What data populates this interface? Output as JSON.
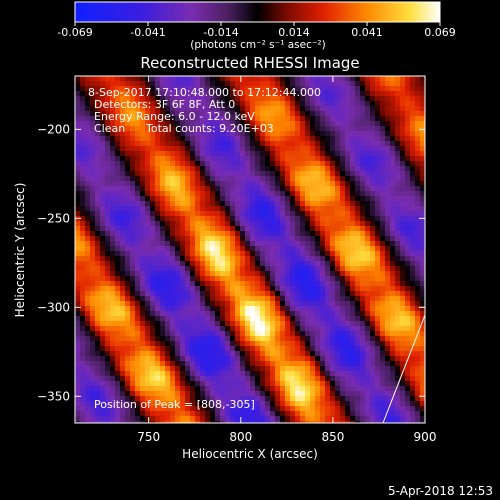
{
  "colorbar": {
    "tick_labels": [
      "-0.069",
      "-0.041",
      "-0.014",
      "0.014",
      "0.041",
      "0.069"
    ],
    "units": "(photons cm⁻² s⁻¹ asec⁻²)",
    "range": [
      -0.069,
      0.069
    ]
  },
  "chart_data": {
    "type": "heatmap",
    "title": "Reconstructed RHESSI Image",
    "xlabel": "Heliocentric X (arcsec)",
    "ylabel": "Heliocentric Y (arcsec)",
    "xlim": [
      710,
      900
    ],
    "ylim": [
      -365,
      -170
    ],
    "x_ticks": [
      750,
      800,
      850,
      900
    ],
    "y_ticks": [
      -200,
      -250,
      -300,
      -350
    ],
    "x_tick_labels": [
      "750",
      "800",
      "850",
      "900"
    ],
    "y_tick_labels": [
      "−200",
      "−250",
      "−300",
      "−350"
    ],
    "colormap": "thermal (blue – purple – black – red – orange – yellow – white)",
    "value_range": [
      -0.069,
      0.069
    ],
    "pattern": "diagonal fringe bands of alternating positive/negative flux",
    "peak_position": [
      808,
      -305
    ],
    "annotations": [
      "8-Sep-2017 17:10:48.000 to 17:12:44.000",
      "Detectors: 3F 6F 8F, Att 0",
      "Energy Range: 6.0 - 12.0 keV",
      "Clean",
      "Total counts: 9.20E+03"
    ],
    "peak_label": "Position of Peak = [808,-305]",
    "grid": false
  },
  "footer": {
    "timestamp": "5-Apr-2018 12:53"
  }
}
